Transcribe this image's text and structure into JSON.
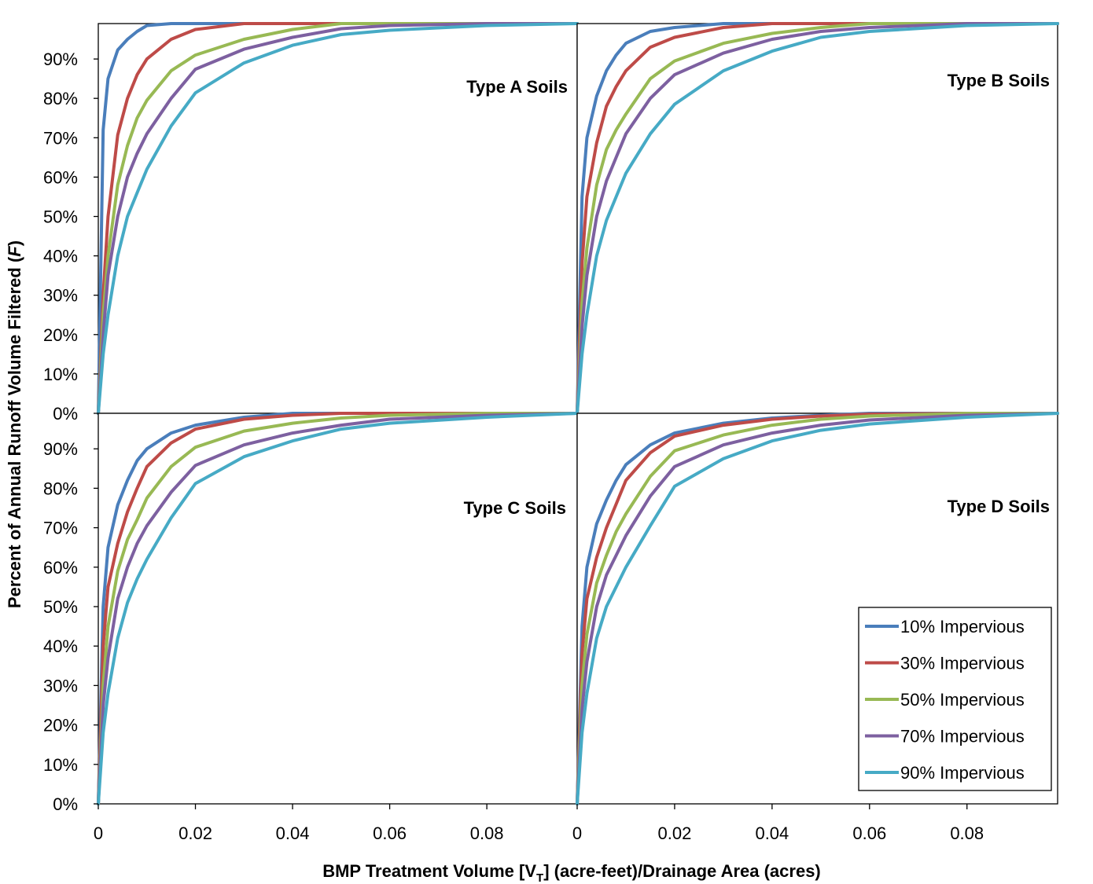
{
  "chart_data": {
    "type": "line",
    "xlabel_parts": [
      "BMP Treatment Volume [V",
      "T",
      "] (acre-feet)/Drainage Area (acres)"
    ],
    "ylabel_parts": [
      "Percent of Annual Runoff Volume Filtered (",
      "F",
      ")"
    ],
    "xlim": [
      0,
      0.0986
    ],
    "ylim": [
      0,
      99
    ],
    "x_ticks": [
      "0",
      "0.02",
      "0.04",
      "0.06",
      "0.08"
    ],
    "x_tick_values": [
      0,
      0.02,
      0.04,
      0.06,
      0.08
    ],
    "y_ticks": [
      "0%",
      "10%",
      "20%",
      "30%",
      "40%",
      "50%",
      "60%",
      "70%",
      "80%",
      "90%"
    ],
    "y_tick_values": [
      0,
      10,
      20,
      30,
      40,
      50,
      60,
      70,
      80,
      90
    ],
    "grid": false,
    "legend_position": "bottom-right of lower-right panel",
    "x": [
      0,
      0.001,
      0.002,
      0.004,
      0.006,
      0.008,
      0.01,
      0.015,
      0.02,
      0.03,
      0.04,
      0.05,
      0.06,
      0.08,
      0.0986
    ],
    "series_styles": [
      {
        "name": "10% Impervious",
        "color": "#4a7ebb"
      },
      {
        "name": "30% Impervious",
        "color": "#be4b48"
      },
      {
        "name": "50% Impervious",
        "color": "#98b954"
      },
      {
        "name": "70% Impervious",
        "color": "#7d60a0"
      },
      {
        "name": "90% Impervious",
        "color": "#46aac5"
      }
    ],
    "panels": [
      {
        "title": "Type A Soils",
        "series": [
          {
            "name": "10% Impervious",
            "values": [
              0,
              72,
              85,
              92.3,
              95,
              97,
              98.5,
              99,
              99,
              99,
              99,
              99,
              99,
              99,
              99
            ]
          },
          {
            "name": "30% Impervious",
            "values": [
              0,
              30,
              50,
              70.7,
              80,
              86,
              90,
              95,
              97.5,
              99,
              99,
              99,
              99,
              99,
              99
            ]
          },
          {
            "name": "50% Impervious",
            "values": [
              0,
              25,
              40,
              58,
              68,
              75,
              79.5,
              87,
              91,
              95,
              97.5,
              99,
              99,
              99,
              99
            ]
          },
          {
            "name": "70% Impervious",
            "values": [
              0,
              20,
              35,
              50,
              60,
              66,
              71,
              80,
              87.4,
              92.5,
              95.5,
              97.7,
              98.5,
              99,
              99
            ]
          },
          {
            "name": "90% Impervious",
            "values": [
              0,
              15,
              25,
              40,
              50,
              56,
              62,
              73,
              81.4,
              89,
              93.5,
              96.2,
              97.3,
              98.5,
              99
            ]
          }
        ]
      },
      {
        "title": "Type B Soils",
        "series": [
          {
            "name": "10% Impervious",
            "values": [
              0,
              55,
              70,
              80.6,
              87,
              91,
              94,
              97,
              98,
              99,
              99,
              99,
              99,
              99,
              99
            ]
          },
          {
            "name": "30% Impervious",
            "values": [
              0,
              38,
              55,
              68.7,
              78,
              83,
              87,
              93,
              95.5,
              98,
              99,
              99,
              99,
              99,
              99
            ]
          },
          {
            "name": "50% Impervious",
            "values": [
              0,
              28,
              42,
              58,
              67,
              72,
              76,
              85,
              89.5,
              94,
              96.5,
              98,
              99,
              99,
              99
            ]
          },
          {
            "name": "70% Impervious",
            "values": [
              0,
              22,
              35,
              50,
              59,
              65,
              71,
              80,
              86,
              91.5,
              95,
              97,
              98,
              99,
              99
            ]
          },
          {
            "name": "90% Impervious",
            "values": [
              0,
              15,
              25,
              40,
              49,
              55,
              61,
              71,
              78.5,
              87,
              92,
              95.5,
              97,
              98.5,
              99
            ]
          }
        ]
      },
      {
        "title": "Type C Soils",
        "series": [
          {
            "name": "10% Impervious",
            "values": [
              0,
              50,
              65,
              75.8,
              82,
              87,
              90,
              94,
              96,
              98,
              99,
              99,
              99,
              99,
              99
            ]
          },
          {
            "name": "30% Impervious",
            "values": [
              0,
              40,
              55,
              66,
              74,
              80,
              85.5,
              91.5,
              95,
              97.5,
              98.5,
              99,
              99,
              99,
              99
            ]
          },
          {
            "name": "50% Impervious",
            "values": [
              0,
              30,
              45,
              59,
              67,
              72,
              77.5,
              85.5,
              90.4,
              94.5,
              96.5,
              97.8,
              98.5,
              99,
              99
            ]
          },
          {
            "name": "70% Impervious",
            "values": [
              0,
              25,
              37,
              52,
              60,
              66,
              70.5,
              79,
              85.8,
              91,
              94,
              96,
              97.5,
              98.5,
              99
            ]
          },
          {
            "name": "90% Impervious",
            "values": [
              0,
              18,
              28,
              42,
              51,
              57,
              62,
              72.5,
              81.2,
              88,
              92,
              95,
              96.5,
              98,
              99
            ]
          }
        ]
      },
      {
        "title": "Type D Soils",
        "series": [
          {
            "name": "10% Impervious",
            "values": [
              0,
              45,
              60,
              71,
              77,
              82,
              86,
              91,
              94,
              96.5,
              97.8,
              98.5,
              99,
              99,
              99
            ]
          },
          {
            "name": "30% Impervious",
            "values": [
              0,
              38,
              52,
              62.5,
              70,
              76,
              82,
              89,
              93.2,
              96,
              97.5,
              98.3,
              98.8,
              99,
              99
            ]
          },
          {
            "name": "50% Impervious",
            "values": [
              0,
              30,
              43,
              56,
              63,
              69,
              73.5,
              83,
              89.5,
              93.5,
              96,
              97.5,
              98.3,
              99,
              99
            ]
          },
          {
            "name": "70% Impervious",
            "values": [
              0,
              24,
              36,
              50,
              58,
              63,
              68,
              78,
              85.5,
              91,
              94,
              96,
              97.3,
              98.5,
              99
            ]
          },
          {
            "name": "90% Impervious",
            "values": [
              0,
              18,
              28,
              42,
              50,
              55,
              60,
              70.5,
              80.5,
              87.5,
              92,
              94.7,
              96.3,
              98,
              99
            ]
          }
        ]
      }
    ]
  }
}
